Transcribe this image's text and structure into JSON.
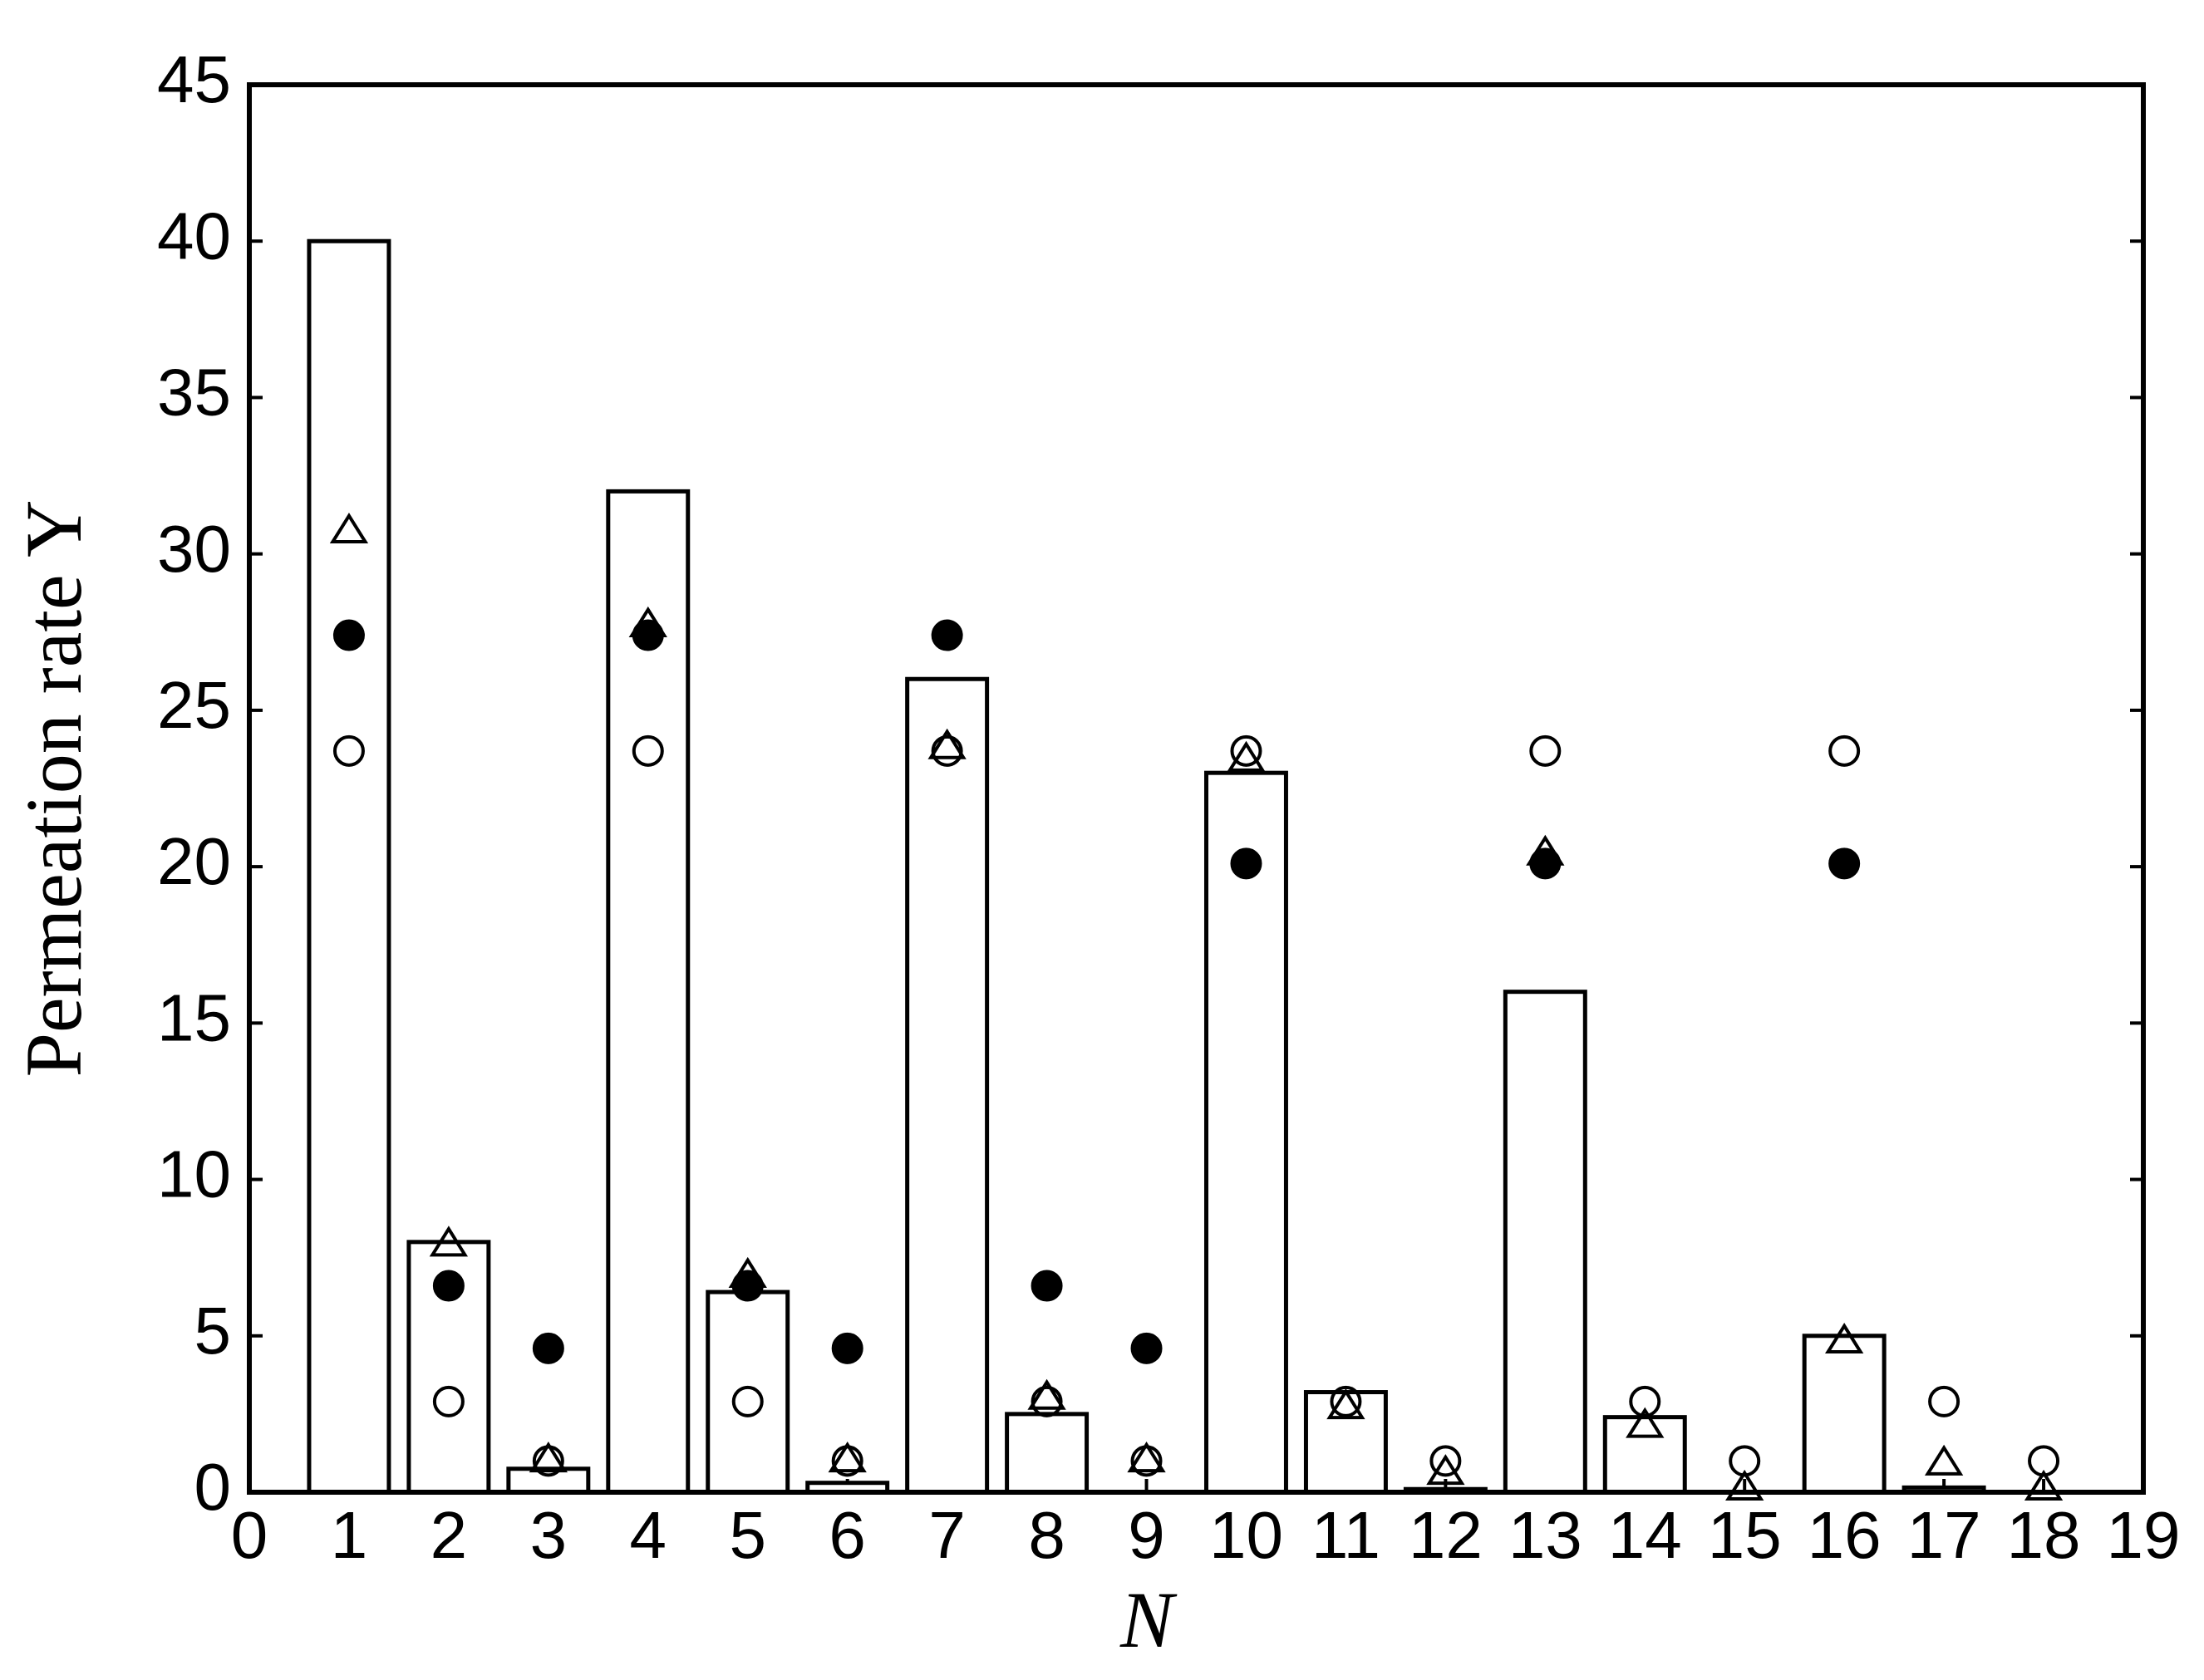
{
  "chart_data": {
    "type": "bar",
    "x_label": "N",
    "y_label": "Permeation rate Y",
    "xlim": [
      0,
      19
    ],
    "xticks": [
      0,
      1,
      2,
      3,
      4,
      5,
      6,
      7,
      8,
      9,
      10,
      11,
      12,
      13,
      14,
      15,
      16,
      17,
      18,
      19
    ],
    "ylim": [
      0,
      45
    ],
    "yticks": [
      0,
      5,
      10,
      15,
      20,
      25,
      30,
      35,
      40,
      45
    ],
    "x": [
      1,
      2,
      3,
      4,
      5,
      6,
      7,
      8,
      9,
      10,
      11,
      12,
      13,
      14,
      15,
      16,
      17,
      18
    ],
    "values": [
      40,
      8,
      0.75,
      32,
      6.4,
      0.3,
      26,
      2.5,
      0,
      23,
      3.2,
      0.1,
      16,
      2.4,
      0,
      5,
      0.15,
      0
    ],
    "color": "#ffffff",
    "series": [
      {
        "marker": "circle-open",
        "color": "#000000",
        "values": [
          23.7,
          2.9,
          1.0,
          23.7,
          2.9,
          1.0,
          23.7,
          2.9,
          1.0,
          23.7,
          2.9,
          1.0,
          23.7,
          2.9,
          1.0,
          23.7,
          2.9,
          1.0
        ]
      },
      {
        "marker": "circle-filled",
        "color": "#000000",
        "values": [
          27.4,
          6.6,
          4.6,
          27.4,
          6.6,
          4.6,
          27.4,
          6.6,
          4.6,
          20.1,
          null,
          null,
          20.1,
          null,
          null,
          20.1,
          null,
          null
        ]
      },
      {
        "marker": "triangle-open",
        "color": "#000000",
        "values": [
          30.7,
          7.9,
          1.0,
          27.7,
          6.9,
          1.0,
          23.8,
          3.0,
          1.0,
          23.4,
          2.7,
          0.6,
          20.4,
          2.1,
          0.1,
          4.8,
          0.9,
          0.1
        ]
      }
    ]
  }
}
